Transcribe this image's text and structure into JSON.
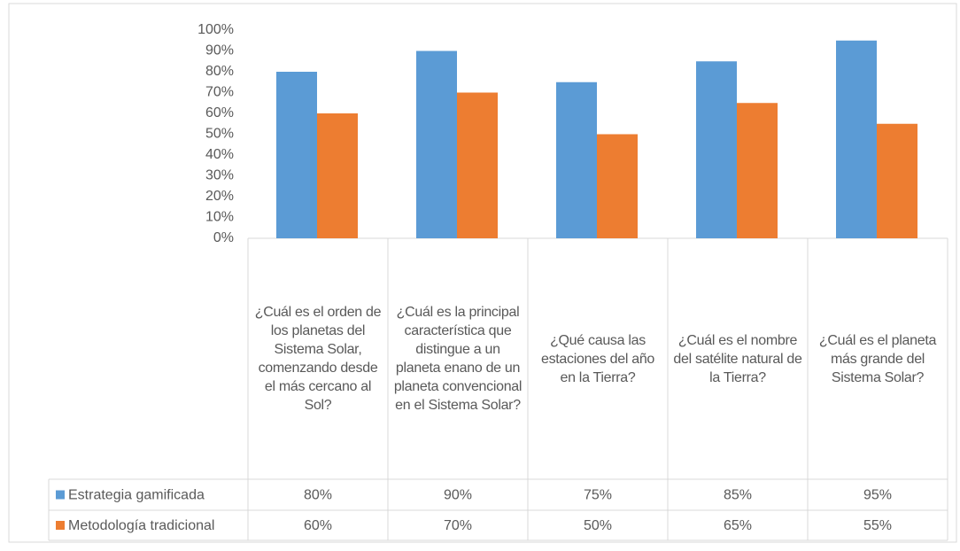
{
  "chart_data": {
    "type": "bar",
    "categories": [
      "¿Cuál es el orden de los planetas del Sistema Solar, comenzando desde el más cercano al Sol?",
      "¿Cuál es la principal característica que distingue a un planeta enano de un planeta convencional en el Sistema Solar?",
      "¿Qué causa las estaciones del año en la Tierra?",
      "¿Cuál es el nombre del satélite natural de la Tierra?",
      "¿Cuál es el planeta más grande del Sistema Solar?"
    ],
    "series": [
      {
        "name": "Estrategia gamificada",
        "color": "#5b9bd5",
        "values": [
          80,
          90,
          75,
          85,
          95
        ],
        "value_labels": [
          "80%",
          "90%",
          "75%",
          "85%",
          "95%"
        ]
      },
      {
        "name": "Metodología tradicional",
        "color": "#ed7d31",
        "values": [
          60,
          70,
          50,
          65,
          55
        ],
        "value_labels": [
          "60%",
          "70%",
          "50%",
          "65%",
          "55%"
        ]
      }
    ],
    "ylim": [
      0,
      100
    ],
    "yticks": [
      {
        "value": 0,
        "label": "0%"
      },
      {
        "value": 10,
        "label": "10%"
      },
      {
        "value": 20,
        "label": "20%"
      },
      {
        "value": 30,
        "label": "30%"
      },
      {
        "value": 40,
        "label": "40%"
      },
      {
        "value": 50,
        "label": "50%"
      },
      {
        "value": 60,
        "label": "60%"
      },
      {
        "value": 70,
        "label": "70%"
      },
      {
        "value": 80,
        "label": "80%"
      },
      {
        "value": 90,
        "label": "90%"
      },
      {
        "value": 100,
        "label": "100%"
      }
    ],
    "grid": false
  }
}
